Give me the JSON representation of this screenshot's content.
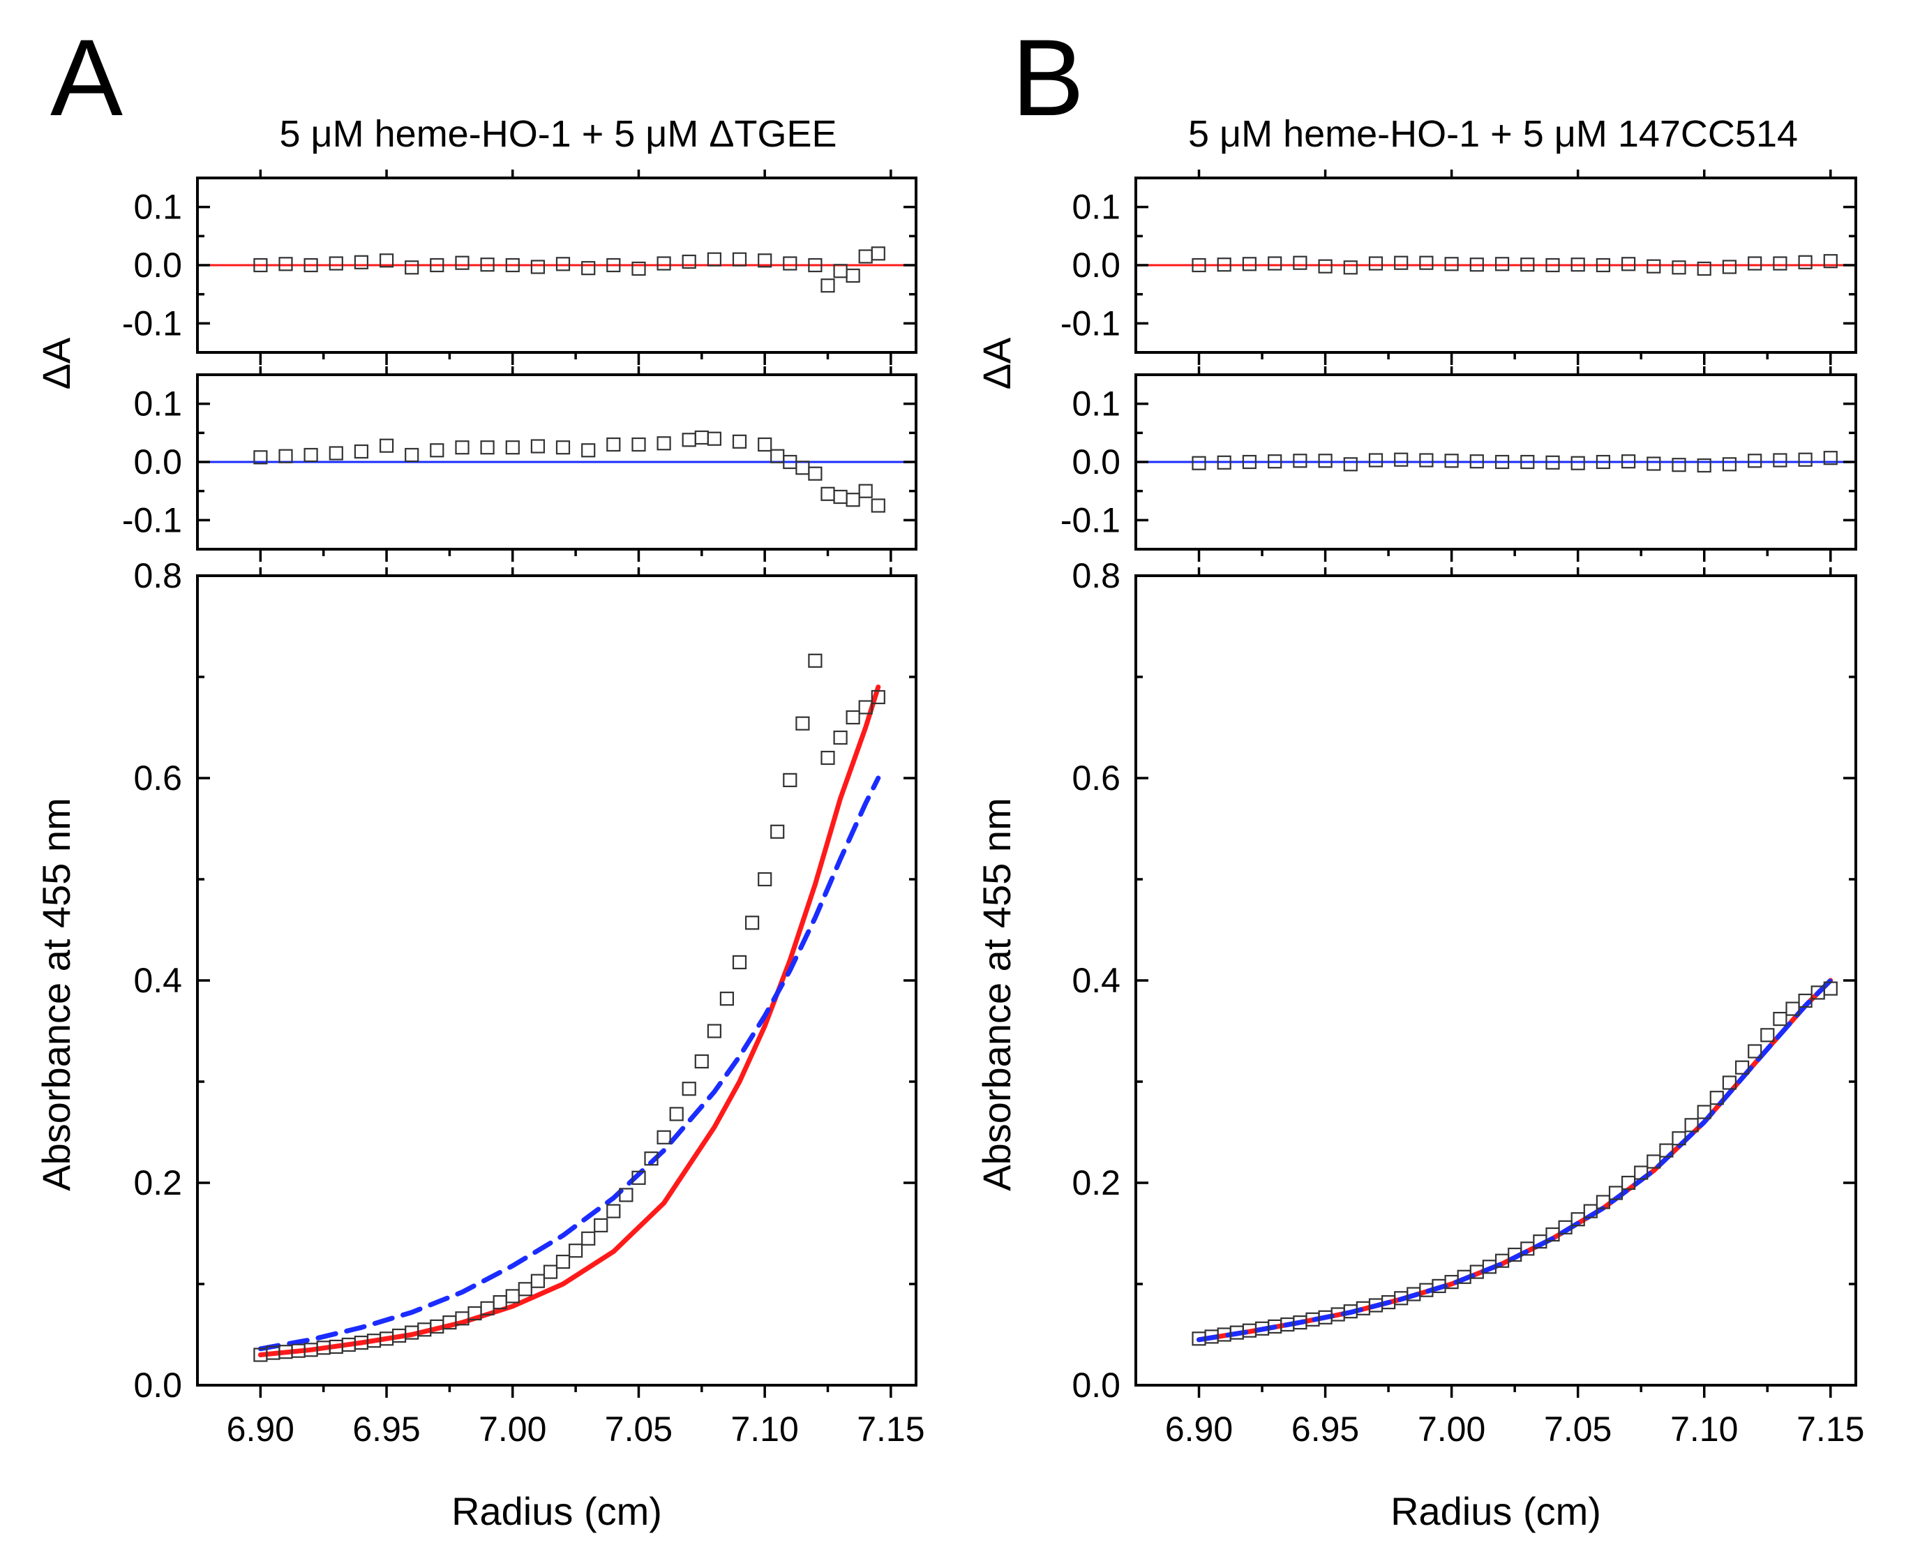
{
  "colors": {
    "red": "#ff1a1a",
    "blue": "#1a2cff",
    "marker": "#333333",
    "axis": "#000000"
  },
  "figure": {
    "panels": [
      {
        "id": "A",
        "letter": "A",
        "title": "5 μM heme-HO-1 + 5 μM ΔTGEE",
        "residual_ylabel": "ΔA",
        "main_ylabel": "Absorbance at 455 nm",
        "xlabel": "Radius (cm)",
        "x_ticks": [
          "6.90",
          "6.95",
          "7.00",
          "7.05",
          "7.10",
          "7.15"
        ],
        "residual_ticks": [
          "0.1",
          "0.0",
          "-0.1"
        ],
        "main_ticks": [
          "0.0",
          "0.2",
          "0.4",
          "0.6",
          "0.8"
        ]
      },
      {
        "id": "B",
        "letter": "B",
        "title": "5 μM heme-HO-1 + 5 μM 147CC514",
        "residual_ylabel": "ΔA",
        "main_ylabel": "Absorbance at 455 nm",
        "xlabel": "Radius (cm)",
        "x_ticks": [
          "6.90",
          "6.95",
          "7.00",
          "7.05",
          "7.10",
          "7.15"
        ],
        "residual_ticks": [
          "0.1",
          "0.0",
          "-0.1"
        ],
        "main_ticks": [
          "0.0",
          "0.2",
          "0.4",
          "0.6",
          "0.8"
        ]
      }
    ]
  },
  "chart_data": [
    {
      "type": "scatter",
      "panel": "A",
      "role": "residuals_red_fit",
      "xlim": [
        6.875,
        7.16
      ],
      "ylim": [
        -0.15,
        0.15
      ],
      "x": [
        6.9,
        6.91,
        6.92,
        6.93,
        6.94,
        6.95,
        6.96,
        6.97,
        6.98,
        6.99,
        7.0,
        7.01,
        7.02,
        7.03,
        7.04,
        7.05,
        7.06,
        7.07,
        7.08,
        7.09,
        7.1,
        7.11,
        7.12,
        7.125,
        7.13,
        7.135,
        7.14,
        7.145
      ],
      "y": [
        0.0,
        0.002,
        0.0,
        0.003,
        0.005,
        0.008,
        -0.004,
        0.0,
        0.004,
        0.001,
        0.0,
        -0.003,
        0.002,
        -0.005,
        0.0,
        -0.006,
        0.003,
        0.006,
        0.01,
        0.01,
        0.008,
        0.003,
        0.0,
        -0.035,
        -0.01,
        -0.018,
        0.015,
        0.02
      ],
      "fit": {
        "name": "residual zero line (red fit)",
        "color": "red",
        "y": 0.0
      }
    },
    {
      "type": "scatter",
      "panel": "A",
      "role": "residuals_blue_fit",
      "xlim": [
        6.875,
        7.16
      ],
      "ylim": [
        -0.15,
        0.15
      ],
      "x": [
        6.9,
        6.91,
        6.92,
        6.93,
        6.94,
        6.95,
        6.96,
        6.97,
        6.98,
        6.99,
        7.0,
        7.01,
        7.02,
        7.03,
        7.04,
        7.05,
        7.06,
        7.07,
        7.075,
        7.08,
        7.09,
        7.1,
        7.105,
        7.11,
        7.115,
        7.12,
        7.125,
        7.13,
        7.135,
        7.14,
        7.145
      ],
      "y": [
        0.008,
        0.01,
        0.012,
        0.015,
        0.018,
        0.028,
        0.012,
        0.02,
        0.025,
        0.025,
        0.025,
        0.027,
        0.025,
        0.02,
        0.03,
        0.03,
        0.032,
        0.038,
        0.042,
        0.04,
        0.035,
        0.03,
        0.01,
        0.0,
        -0.01,
        -0.02,
        -0.055,
        -0.06,
        -0.065,
        -0.05,
        -0.075
      ],
      "fit": {
        "name": "residual zero line (blue fit)",
        "color": "blue",
        "y": 0.0
      }
    },
    {
      "type": "scatter",
      "panel": "A",
      "role": "absorbance_profile",
      "title": "5 μM heme-HO-1 + 5 μM ΔTGEE",
      "xlabel": "Radius (cm)",
      "ylabel": "Absorbance at 455 nm",
      "xlim": [
        6.875,
        7.16
      ],
      "ylim": [
        0,
        0.8
      ],
      "x": [
        6.9,
        6.905,
        6.91,
        6.915,
        6.92,
        6.925,
        6.93,
        6.935,
        6.94,
        6.945,
        6.95,
        6.955,
        6.96,
        6.965,
        6.97,
        6.975,
        6.98,
        6.985,
        6.99,
        6.995,
        7.0,
        7.005,
        7.01,
        7.015,
        7.02,
        7.025,
        7.03,
        7.035,
        7.04,
        7.045,
        7.05,
        7.055,
        7.06,
        7.065,
        7.07,
        7.075,
        7.08,
        7.085,
        7.09,
        7.095,
        7.1,
        7.105,
        7.11,
        7.115,
        7.12,
        7.125,
        7.13,
        7.135,
        7.14,
        7.145
      ],
      "y": [
        0.03,
        0.032,
        0.033,
        0.034,
        0.035,
        0.037,
        0.038,
        0.04,
        0.042,
        0.044,
        0.046,
        0.049,
        0.052,
        0.055,
        0.058,
        0.062,
        0.066,
        0.071,
        0.076,
        0.082,
        0.088,
        0.095,
        0.103,
        0.112,
        0.122,
        0.133,
        0.145,
        0.158,
        0.172,
        0.188,
        0.205,
        0.224,
        0.245,
        0.268,
        0.293,
        0.32,
        0.35,
        0.382,
        0.418,
        0.457,
        0.5,
        0.547,
        0.598,
        0.654,
        0.716,
        0.62,
        0.64,
        0.66,
        0.67,
        0.68
      ],
      "series": [
        {
          "name": "red fit",
          "style": "solid",
          "color": "red",
          "x": [
            6.9,
            6.92,
            6.94,
            6.96,
            6.98,
            7.0,
            7.02,
            7.04,
            7.06,
            7.08,
            7.09,
            7.1,
            7.11,
            7.12,
            7.13,
            7.14,
            7.145
          ],
          "y": [
            0.03,
            0.035,
            0.042,
            0.05,
            0.062,
            0.078,
            0.1,
            0.132,
            0.18,
            0.255,
            0.3,
            0.355,
            0.42,
            0.495,
            0.58,
            0.65,
            0.69
          ]
        },
        {
          "name": "blue fit",
          "style": "dashed",
          "color": "blue",
          "x": [
            6.9,
            6.92,
            6.94,
            6.96,
            6.98,
            7.0,
            7.02,
            7.04,
            7.06,
            7.08,
            7.09,
            7.1,
            7.11,
            7.12,
            7.13,
            7.14,
            7.145
          ],
          "y": [
            0.036,
            0.045,
            0.057,
            0.072,
            0.092,
            0.118,
            0.148,
            0.185,
            0.232,
            0.29,
            0.325,
            0.365,
            0.41,
            0.462,
            0.52,
            0.575,
            0.6
          ]
        }
      ]
    },
    {
      "type": "scatter",
      "panel": "B",
      "role": "residuals_red_fit",
      "xlim": [
        6.875,
        7.16
      ],
      "ylim": [
        -0.15,
        0.15
      ],
      "x": [
        6.9,
        6.91,
        6.92,
        6.93,
        6.94,
        6.95,
        6.96,
        6.97,
        6.98,
        6.99,
        7.0,
        7.01,
        7.02,
        7.03,
        7.04,
        7.05,
        7.06,
        7.07,
        7.08,
        7.09,
        7.1,
        7.11,
        7.12,
        7.13,
        7.14,
        7.15
      ],
      "y": [
        0.0,
        0.001,
        0.002,
        0.003,
        0.004,
        -0.002,
        -0.004,
        0.003,
        0.004,
        0.004,
        0.002,
        0.001,
        0.002,
        0.001,
        0.0,
        0.001,
        0.0,
        0.002,
        -0.002,
        -0.004,
        -0.006,
        -0.003,
        0.003,
        0.003,
        0.005,
        0.007
      ],
      "fit": {
        "name": "residual zero line (red fit)",
        "color": "red",
        "y": 0.0
      }
    },
    {
      "type": "scatter",
      "panel": "B",
      "role": "residuals_blue_fit",
      "xlim": [
        6.875,
        7.16
      ],
      "ylim": [
        -0.15,
        0.15
      ],
      "x": [
        6.9,
        6.91,
        6.92,
        6.93,
        6.94,
        6.95,
        6.96,
        6.97,
        6.98,
        6.99,
        7.0,
        7.01,
        7.02,
        7.03,
        7.04,
        7.05,
        7.06,
        7.07,
        7.08,
        7.09,
        7.1,
        7.11,
        7.12,
        7.13,
        7.14,
        7.15
      ],
      "y": [
        -0.002,
        -0.001,
        0.0,
        0.001,
        0.002,
        0.002,
        -0.004,
        0.003,
        0.004,
        0.003,
        0.002,
        0.001,
        0.0,
        0.0,
        -0.001,
        -0.002,
        0.0,
        0.001,
        -0.003,
        -0.005,
        -0.006,
        -0.004,
        0.002,
        0.003,
        0.004,
        0.007
      ],
      "fit": {
        "name": "residual zero line (blue fit)",
        "color": "blue",
        "y": 0.0
      }
    },
    {
      "type": "scatter",
      "panel": "B",
      "role": "absorbance_profile",
      "title": "5 μM heme-HO-1 + 5 μM 147CC514",
      "xlabel": "Radius (cm)",
      "ylabel": "Absorbance at 455 nm",
      "xlim": [
        6.875,
        7.16
      ],
      "ylim": [
        0,
        0.8
      ],
      "x": [
        6.9,
        6.905,
        6.91,
        6.915,
        6.92,
        6.925,
        6.93,
        6.935,
        6.94,
        6.945,
        6.95,
        6.955,
        6.96,
        6.965,
        6.97,
        6.975,
        6.98,
        6.985,
        6.99,
        6.995,
        7.0,
        7.005,
        7.01,
        7.015,
        7.02,
        7.025,
        7.03,
        7.035,
        7.04,
        7.045,
        7.05,
        7.055,
        7.06,
        7.065,
        7.07,
        7.075,
        7.08,
        7.085,
        7.09,
        7.095,
        7.1,
        7.105,
        7.11,
        7.115,
        7.12,
        7.125,
        7.13,
        7.135,
        7.14,
        7.145,
        7.15
      ],
      "y": [
        0.046,
        0.048,
        0.05,
        0.052,
        0.054,
        0.056,
        0.058,
        0.06,
        0.062,
        0.065,
        0.067,
        0.07,
        0.073,
        0.076,
        0.079,
        0.082,
        0.086,
        0.09,
        0.094,
        0.098,
        0.102,
        0.107,
        0.112,
        0.117,
        0.123,
        0.129,
        0.135,
        0.142,
        0.149,
        0.156,
        0.164,
        0.172,
        0.181,
        0.19,
        0.2,
        0.21,
        0.221,
        0.232,
        0.244,
        0.257,
        0.27,
        0.284,
        0.299,
        0.314,
        0.33,
        0.346,
        0.362,
        0.372,
        0.38,
        0.388,
        0.392
      ],
      "series": [
        {
          "name": "red fit",
          "style": "solid",
          "color": "red",
          "x": [
            6.9,
            6.92,
            6.94,
            6.96,
            6.98,
            7.0,
            7.02,
            7.04,
            7.06,
            7.08,
            7.1,
            7.12,
            7.14,
            7.15
          ],
          "y": [
            0.045,
            0.053,
            0.062,
            0.072,
            0.085,
            0.1,
            0.12,
            0.145,
            0.175,
            0.212,
            0.26,
            0.318,
            0.375,
            0.4
          ]
        },
        {
          "name": "blue fit",
          "style": "dashed",
          "color": "blue",
          "x": [
            6.9,
            6.92,
            6.94,
            6.96,
            6.98,
            7.0,
            7.02,
            7.04,
            7.06,
            7.08,
            7.1,
            7.12,
            7.14,
            7.15
          ],
          "y": [
            0.045,
            0.053,
            0.062,
            0.072,
            0.085,
            0.1,
            0.12,
            0.145,
            0.175,
            0.212,
            0.26,
            0.318,
            0.375,
            0.4
          ]
        }
      ]
    }
  ]
}
